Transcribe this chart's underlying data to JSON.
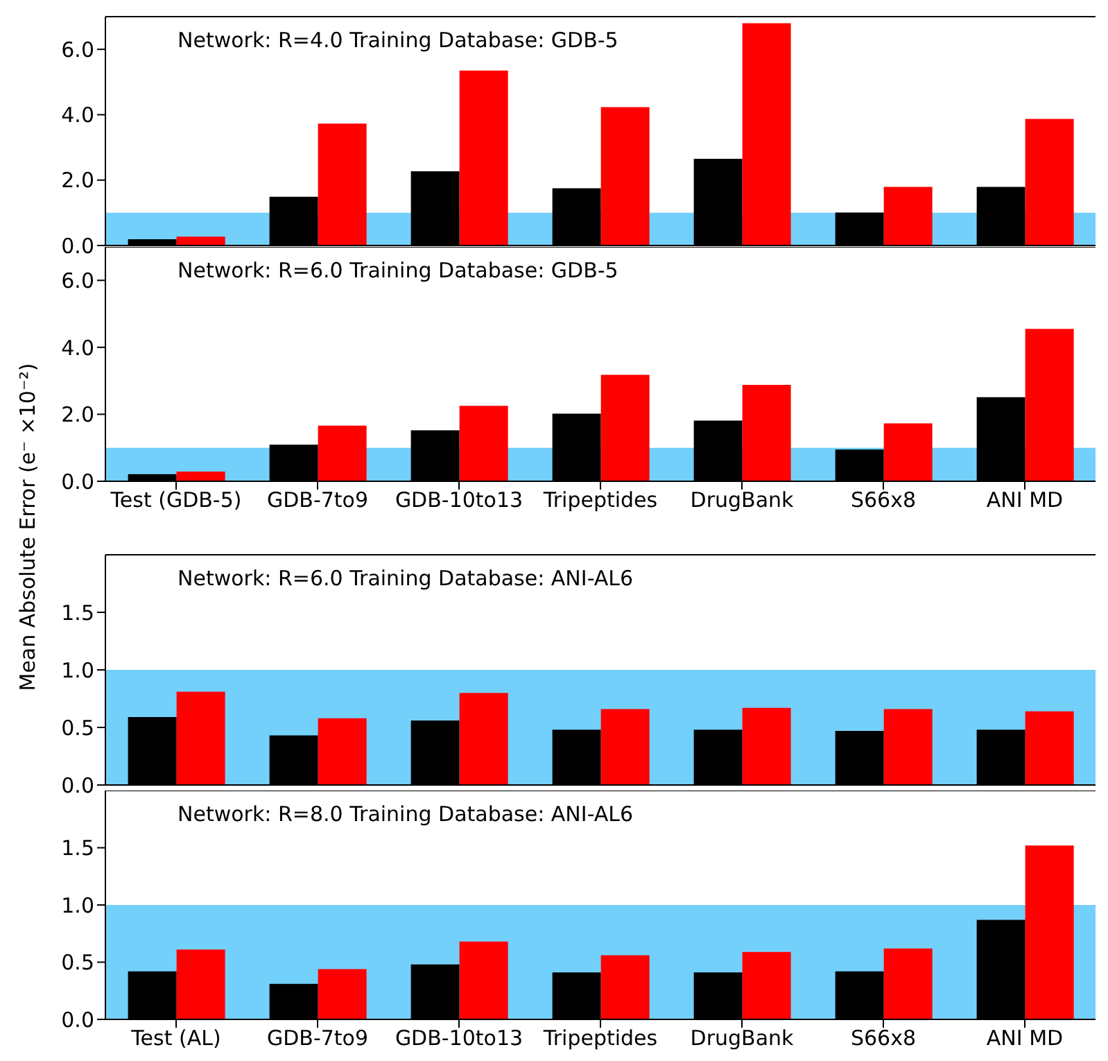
{
  "chart_data": [
    {
      "type": "bar",
      "annotations": [
        "Network: R=4.0 Training Database: GDB-5"
      ],
      "categories": [
        null,
        null,
        null,
        null,
        null,
        null,
        null
      ],
      "series": [
        {
          "color": "#000000",
          "values": [
            0.19,
            1.49,
            2.27,
            1.75,
            2.65,
            1.01,
            1.79
          ]
        },
        {
          "color": "#ff0000",
          "values": [
            0.27,
            3.73,
            5.35,
            4.23,
            6.8,
            1.79,
            3.87
          ]
        }
      ],
      "ylim": [
        0,
        7
      ],
      "yticks": [
        {
          "value": 0,
          "label": "0.0"
        },
        {
          "value": 2,
          "label": "2.0"
        },
        {
          "value": 4,
          "label": "4.0"
        },
        {
          "value": 6,
          "label": "6.0"
        }
      ],
      "bands": [
        {
          "axis": "y",
          "from": 0,
          "to": 1,
          "color": "#73d0fb"
        }
      ],
      "tick_labels": "y"
    },
    {
      "type": "bar",
      "annotations": [
        "Network: R=6.0 Training Database: GDB-5"
      ],
      "ylabel": "Mean Absolute Error (e⁻ ×10⁻²)",
      "categories": [
        "Test (GDB-5)",
        "GDB-7to9",
        "GDB-10to13",
        "Tripeptides",
        "DrugBank",
        "S66x8",
        "ANI MD"
      ],
      "series": [
        {
          "color": "#000000",
          "values": [
            0.21,
            1.09,
            1.52,
            2.02,
            1.81,
            0.95,
            2.51
          ]
        },
        {
          "color": "#ff0000",
          "values": [
            0.29,
            1.66,
            2.25,
            3.18,
            2.88,
            1.73,
            4.55
          ]
        }
      ],
      "ylim": [
        0,
        7
      ],
      "yticks": [
        {
          "value": 0,
          "label": "0.0"
        },
        {
          "value": 2,
          "label": "2.0"
        },
        {
          "value": 4,
          "label": "4.0"
        },
        {
          "value": 6,
          "label": "6.0"
        }
      ],
      "bands": [
        {
          "axis": "y",
          "from": 0,
          "to": 1,
          "color": "#73d0fb"
        }
      ]
    },
    {
      "type": "bar",
      "annotations": [
        "Network: R=6.0 Training Database: ANI-AL6"
      ],
      "categories": [
        null,
        null,
        null,
        null,
        null,
        null,
        null
      ],
      "series": [
        {
          "color": "#000000",
          "values": [
            0.59,
            0.43,
            0.56,
            0.48,
            0.48,
            0.47,
            0.48
          ]
        },
        {
          "color": "#ff0000",
          "values": [
            0.81,
            0.58,
            0.8,
            0.66,
            0.67,
            0.66,
            0.64
          ]
        }
      ],
      "ylim": [
        0,
        2
      ],
      "yticks": [
        {
          "value": 0,
          "label": "0.0"
        },
        {
          "value": 0.5,
          "label": "0.5"
        },
        {
          "value": 1,
          "label": "1.0"
        },
        {
          "value": 1.5,
          "label": "1.5"
        }
      ],
      "bands": [
        {
          "axis": "y",
          "from": 0,
          "to": 1,
          "color": "#73d0fb"
        }
      ],
      "tick_labels": "y"
    },
    {
      "type": "bar",
      "annotations": [
        "Network: R=8.0 Training Database: ANI-AL6"
      ],
      "categories": [
        "Test (AL)",
        "GDB-7to9",
        "GDB-10to13",
        "Tripeptides",
        "DrugBank",
        "S66x8",
        "ANI MD"
      ],
      "series": [
        {
          "color": "#000000",
          "values": [
            0.42,
            0.31,
            0.48,
            0.41,
            0.41,
            0.42,
            0.87
          ]
        },
        {
          "color": "#ff0000",
          "values": [
            0.61,
            0.44,
            0.68,
            0.56,
            0.59,
            0.62,
            1.52
          ]
        }
      ],
      "ylim": [
        0,
        2
      ],
      "yticks": [
        {
          "value": 0,
          "label": "0.0"
        },
        {
          "value": 0.5,
          "label": "0.5"
        },
        {
          "value": 1,
          "label": "1.0"
        },
        {
          "value": 1.5,
          "label": "1.5"
        }
      ],
      "bands": [
        {
          "axis": "y",
          "from": 0,
          "to": 1,
          "color": "#73d0fb"
        }
      ]
    }
  ]
}
